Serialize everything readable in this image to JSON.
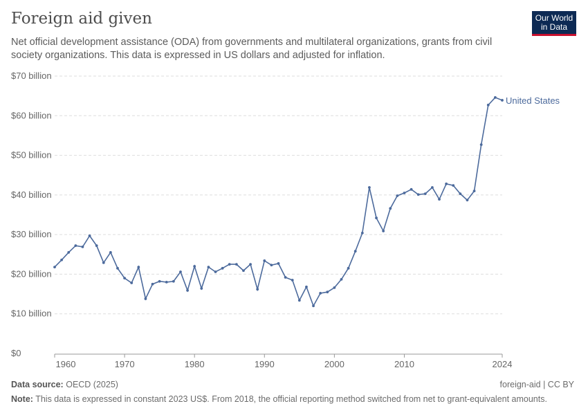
{
  "header": {
    "title": "Foreign aid given",
    "subtitle": "Net official development assistance (ODA) from governments and multilateral organizations, grants from civil society organizations. This data is expressed in US dollars and adjusted for inflation.",
    "logo_text": "Our World in Data"
  },
  "footer": {
    "source_label": "Data source:",
    "source": "OECD (2025)",
    "license": "foreign-aid | CC BY",
    "note_label": "Note:",
    "note": "This data is expressed in constant 2023 US$. From 2018, the official reporting method switched from net to grant-equivalent amounts."
  },
  "colors": {
    "series": "#4c6a9c",
    "grid": "#dddddd",
    "axis": "#999999"
  },
  "chart_data": {
    "type": "line",
    "title": "Foreign aid given",
    "xlim": [
      1960,
      2024
    ],
    "ylim": [
      0,
      70
    ],
    "grid": true,
    "y_ticks": [
      {
        "v": 0,
        "label": "$0"
      },
      {
        "v": 10,
        "label": "$10 billion"
      },
      {
        "v": 20,
        "label": "$20 billion"
      },
      {
        "v": 30,
        "label": "$30 billion"
      },
      {
        "v": 40,
        "label": "$40 billion"
      },
      {
        "v": 50,
        "label": "$50 billion"
      },
      {
        "v": 60,
        "label": "$60 billion"
      },
      {
        "v": 70,
        "label": "$70 billion"
      }
    ],
    "x_ticks": [
      {
        "v": 1960,
        "label": "1960"
      },
      {
        "v": 1970,
        "label": "1970"
      },
      {
        "v": 1980,
        "label": "1980"
      },
      {
        "v": 1990,
        "label": "1990"
      },
      {
        "v": 2000,
        "label": "2000"
      },
      {
        "v": 2010,
        "label": "2010"
      },
      {
        "v": 2024,
        "label": "2024"
      }
    ],
    "series": [
      {
        "name": "United States",
        "unit": "billion US$",
        "x": [
          1960,
          1961,
          1962,
          1963,
          1964,
          1965,
          1966,
          1967,
          1968,
          1969,
          1970,
          1971,
          1972,
          1973,
          1974,
          1975,
          1976,
          1977,
          1978,
          1979,
          1980,
          1981,
          1982,
          1983,
          1984,
          1985,
          1986,
          1987,
          1988,
          1989,
          1990,
          1991,
          1992,
          1993,
          1994,
          1995,
          1996,
          1997,
          1998,
          1999,
          2000,
          2001,
          2002,
          2003,
          2004,
          2005,
          2006,
          2007,
          2008,
          2009,
          2010,
          2011,
          2012,
          2013,
          2014,
          2015,
          2016,
          2017,
          2018,
          2019,
          2020,
          2021,
          2022,
          2023,
          2024
        ],
        "y": [
          21.8,
          23.6,
          25.5,
          27.2,
          26.9,
          29.7,
          27.2,
          22.9,
          25.5,
          21.5,
          19.0,
          17.8,
          21.8,
          13.8,
          17.5,
          18.2,
          18.0,
          18.2,
          20.6,
          15.9,
          22.0,
          16.4,
          21.8,
          20.6,
          21.5,
          22.5,
          22.5,
          20.9,
          22.5,
          16.2,
          23.4,
          22.3,
          22.7,
          19.2,
          18.5,
          13.4,
          16.8,
          12.0,
          15.2,
          15.5,
          16.6,
          18.7,
          21.5,
          25.8,
          30.4,
          41.9,
          34.2,
          30.9,
          36.6,
          39.8,
          40.5,
          41.4,
          40.1,
          40.3,
          41.9,
          38.9,
          42.8,
          42.4,
          40.3,
          38.7,
          41.0,
          52.7,
          62.7,
          64.6,
          63.9
        ]
      }
    ]
  }
}
